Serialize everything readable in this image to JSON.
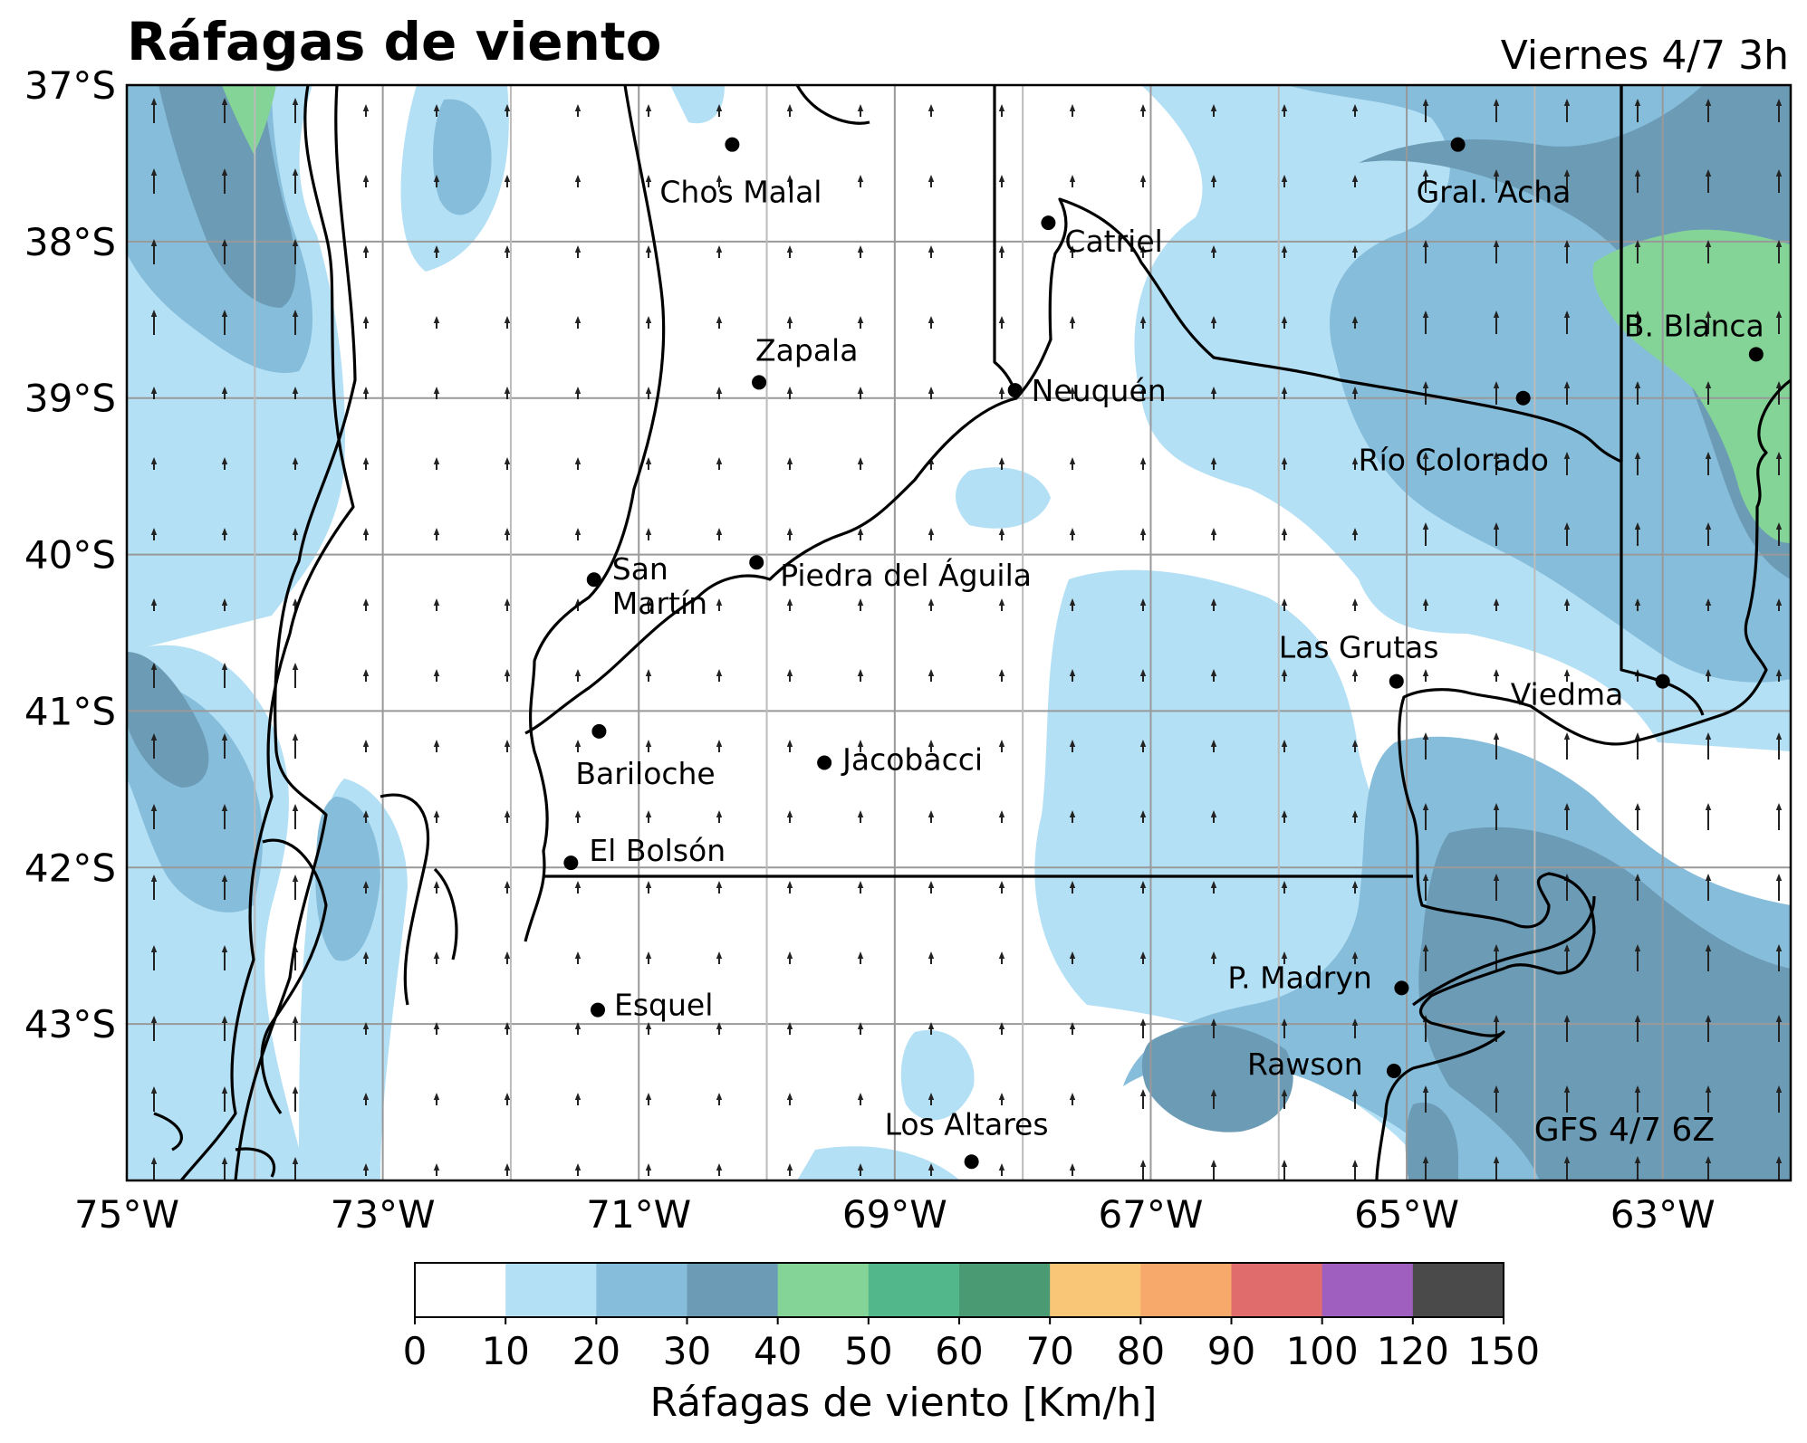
{
  "title": "Ráfagas de viento",
  "valid_time": "Viernes 4/7 3h",
  "model_run": "GFS 4/7 6Z",
  "colorbar": {
    "label": "Ráfagas de viento [Km/h]",
    "ticks": [
      "0",
      "10",
      "20",
      "30",
      "40",
      "50",
      "60",
      "70",
      "80",
      "90",
      "100",
      "120",
      "150"
    ],
    "colors": [
      "#ffffff",
      "#b3e0f5",
      "#86bddb",
      "#6c9bb5",
      "#84d497",
      "#52b88b",
      "#4a9a74",
      "#f9c576",
      "#f6a96a",
      "#e06c6c",
      "#9e5fbf",
      "#4a4a4a"
    ]
  },
  "axes": {
    "lat_labels": [
      "37°S",
      "38°S",
      "39°S",
      "40°S",
      "41°S",
      "42°S",
      "43°S"
    ],
    "lon_labels": [
      "75°W",
      "73°W",
      "71°W",
      "69°W",
      "67°W",
      "65°W",
      "63°W"
    ],
    "lon_range": [
      -75,
      -62
    ],
    "lat_range": [
      -44,
      -37
    ],
    "grid": true
  },
  "cities": [
    {
      "name": "Chos Malal",
      "lon": -70.27,
      "lat": -37.38
    },
    {
      "name": "Catriel",
      "lon": -67.8,
      "lat": -37.88
    },
    {
      "name": "Gral. Acha",
      "lon": -64.6,
      "lat": -37.38
    },
    {
      "name": "Zapala",
      "lon": -70.06,
      "lat": -38.9
    },
    {
      "name": "Neuquén",
      "lon": -68.06,
      "lat": -38.95
    },
    {
      "name": "B. Blanca",
      "lon": -62.27,
      "lat": -38.72
    },
    {
      "name": "Río Colorado",
      "lon": -64.09,
      "lat": -39.0
    },
    {
      "name": "San Martín",
      "lon": -71.35,
      "lat": -40.16
    },
    {
      "name": "Piedra del Águila",
      "lon": -70.08,
      "lat": -40.05
    },
    {
      "name": "Las Grutas",
      "lon": -65.08,
      "lat": -40.81
    },
    {
      "name": "Viedma",
      "lon": -63.0,
      "lat": -40.81
    },
    {
      "name": "Bariloche",
      "lon": -71.31,
      "lat": -41.13
    },
    {
      "name": "Jacobacci",
      "lon": -69.55,
      "lat": -41.33
    },
    {
      "name": "El Bolsón",
      "lon": -71.53,
      "lat": -41.97
    },
    {
      "name": "P. Madryn",
      "lon": -65.04,
      "lat": -42.77
    },
    {
      "name": "Esquel",
      "lon": -71.32,
      "lat": -42.91
    },
    {
      "name": "Rawson",
      "lon": -65.1,
      "lat": -43.3
    },
    {
      "name": "Los Altares",
      "lon": -68.4,
      "lat": -43.88
    }
  ]
}
